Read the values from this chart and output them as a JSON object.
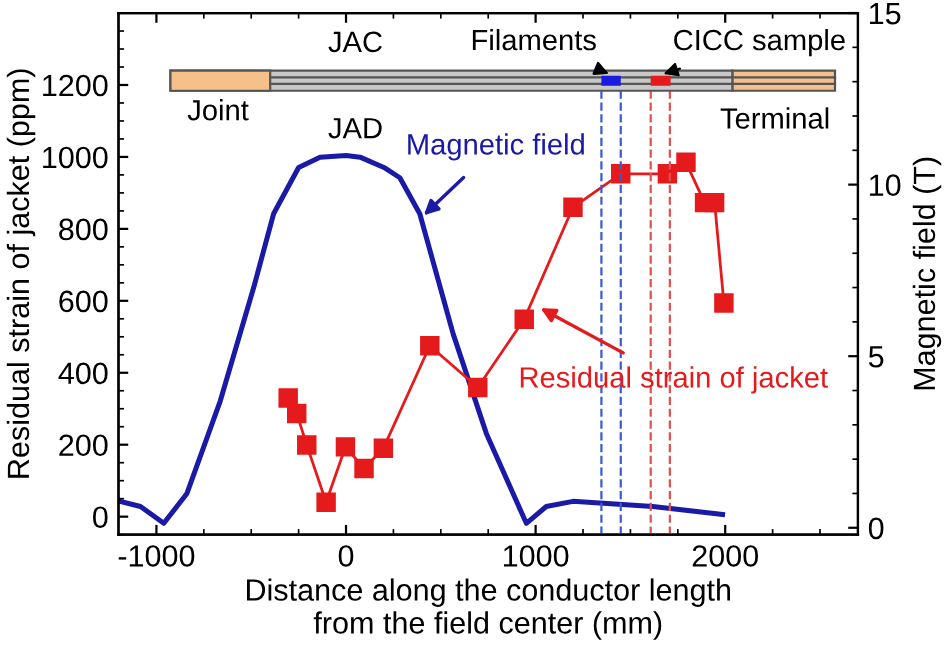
{
  "chart_data": {
    "type": "line",
    "xlabel": "Distance along the conductor length\nfrom the field center (mm)",
    "ylabel": "Residual strain of jacket (ppm)",
    "y2label": "Magnetic field (T)",
    "x": [
      -305,
      -260,
      -207,
      -105,
      -3,
      95,
      197,
      442,
      695,
      940,
      1197,
      1449,
      1695,
      1793,
      1891,
      1944,
      1993
    ],
    "series": [
      {
        "name": "Residual strain of jacket",
        "color": "#e41a1c",
        "marker": "square",
        "values": [
          330,
          287,
          199,
          40,
          194,
          134,
          190,
          475,
          359,
          549,
          860,
          953,
          953,
          985,
          873,
          873,
          594
        ]
      },
      {
        "name": "Magnetic field",
        "color": "#1a1aa6",
        "marker": "none",
        "axis": "y2",
        "x": [
          -1190,
          -1084,
          -961,
          -839,
          -663,
          -487,
          -382,
          -250,
          -137,
          0,
          74,
          200,
          284,
          389,
          565,
          740,
          951,
          1056,
          1197,
          1618,
          1986
        ],
        "values": [
          0.77,
          0.62,
          0.13,
          1.0,
          3.7,
          7.0,
          9.15,
          10.5,
          10.8,
          10.85,
          10.8,
          10.5,
          10.2,
          9.15,
          5.65,
          2.75,
          0.13,
          0.62,
          0.77,
          0.62,
          0.39
        ]
      }
    ],
    "xlim": [
      -1200,
      2700
    ],
    "xticks": [
      -1000,
      0,
      1000,
      2000
    ],
    "ylim": [
      -50,
      1400
    ],
    "yticks": [
      0,
      200,
      400,
      600,
      800,
      1000,
      1200
    ],
    "y2lim": [
      -0.2,
      15
    ],
    "y2ticks": [
      0,
      5,
      10,
      15
    ],
    "ref_lines": [
      {
        "axis": "x",
        "value": 1347,
        "color": "#3b5bd6",
        "line_style": "dashed"
      },
      {
        "axis": "x",
        "value": 1449,
        "color": "#3b5bd6",
        "line_style": "dashed"
      },
      {
        "axis": "x",
        "value": 1607,
        "color": "#e05050",
        "line_style": "dashed"
      },
      {
        "axis": "x",
        "value": 1708,
        "color": "#e05050",
        "line_style": "dashed"
      }
    ],
    "annotations": [
      "JAC",
      "JAD",
      "Joint",
      "Terminal",
      "Filaments",
      "CICC sample"
    ]
  }
}
